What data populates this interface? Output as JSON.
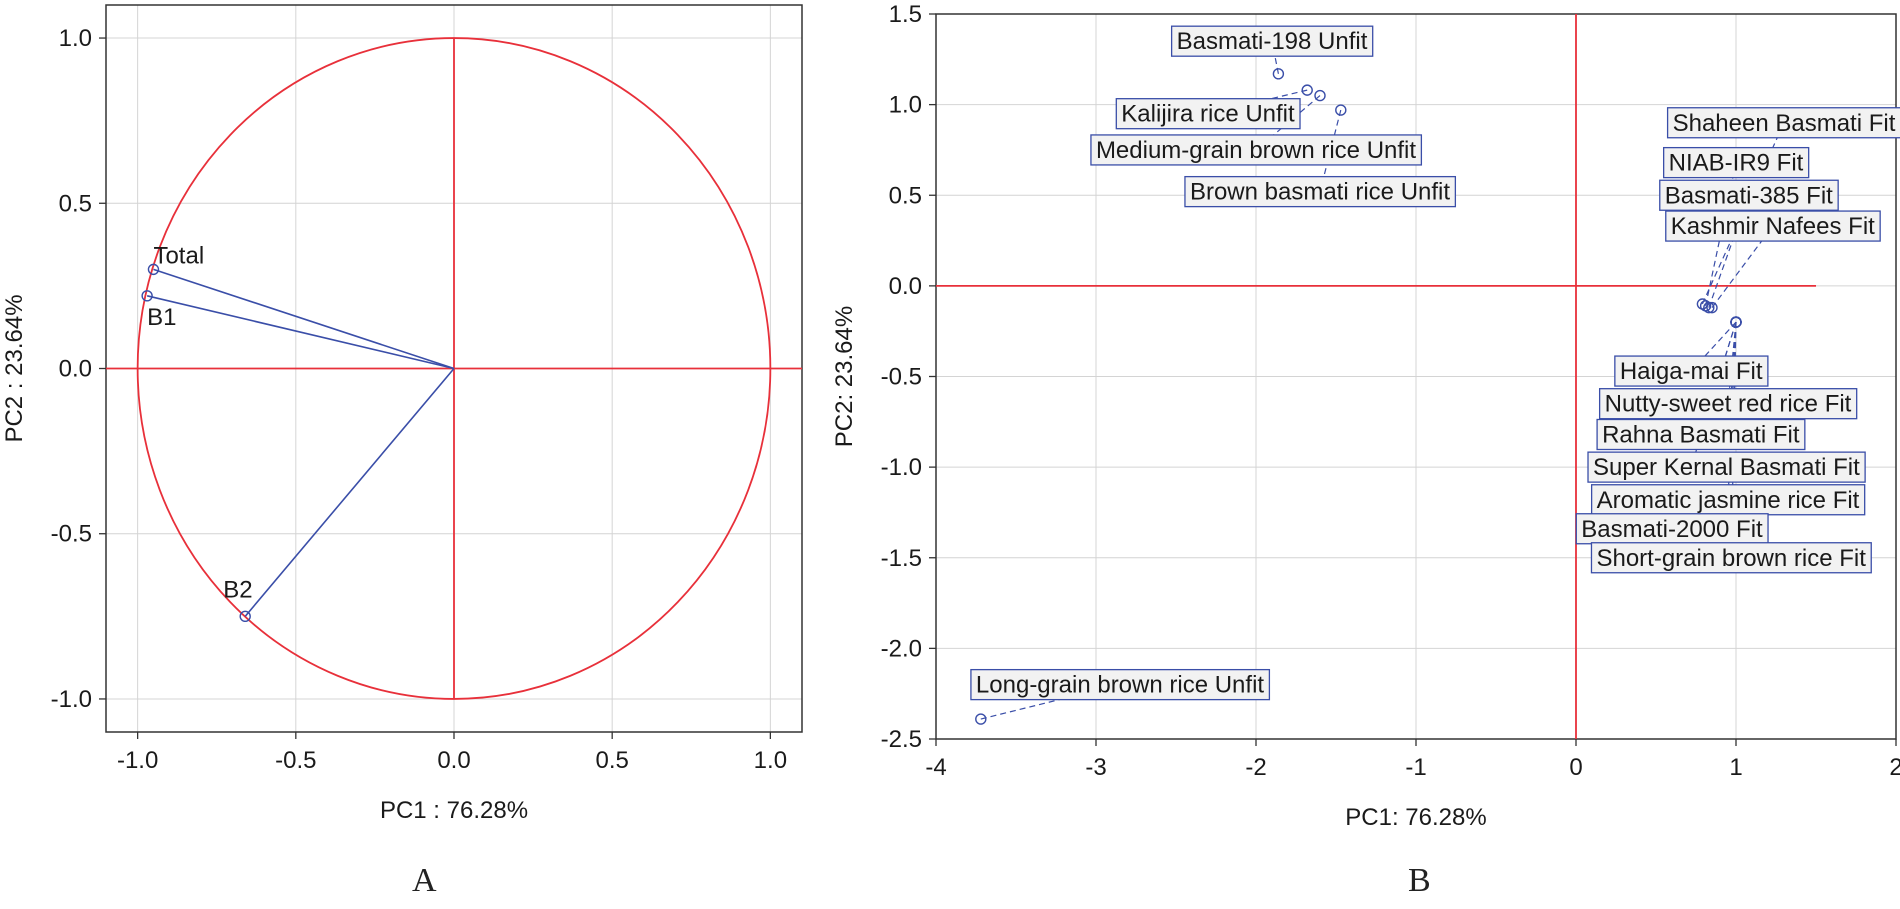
{
  "chart_data": [
    {
      "type": "scatter",
      "subtype": "loading-plot",
      "panel_label": "A",
      "xlabel": "PC1 : 76.28%",
      "ylabel": "PC2 : 23.64%",
      "xlim": [
        -1.1,
        1.1
      ],
      "ylim": [
        -1.1,
        1.1
      ],
      "xticks": [
        -1.0,
        -0.5,
        0.0,
        0.5,
        1.0
      ],
      "xtick_labels": [
        "-1.0",
        "-0.5",
        "0.0",
        "0.5",
        "1.0"
      ],
      "yticks": [
        -1.0,
        -0.5,
        0.0,
        0.5,
        1.0
      ],
      "ytick_labels": [
        "-1.0",
        "-0.5",
        "0.0",
        "0.5",
        "1.0"
      ],
      "grid": true,
      "unit_circle_radius": 1.0,
      "points": [
        {
          "label": "Total",
          "x": -0.95,
          "y": 0.3,
          "label_anchor": "above-right"
        },
        {
          "label": "B1",
          "x": -0.97,
          "y": 0.22,
          "label_anchor": "below"
        },
        {
          "label": "B2",
          "x": -0.66,
          "y": -0.75,
          "label_anchor": "above-left"
        }
      ],
      "colors": {
        "axis_lines": "#e8303a",
        "vectors": "#3a4ea8",
        "grid": "#d4d4d4"
      }
    },
    {
      "type": "scatter",
      "subtype": "score-plot",
      "panel_label": "B",
      "xlabel": "PC1: 76.28%",
      "ylabel": "PC2: 23.64%",
      "xlim": [
        -4,
        2
      ],
      "ylim": [
        -2.5,
        1.5
      ],
      "xticks": [
        -4,
        -3,
        -2,
        -1,
        0,
        1,
        2
      ],
      "xtick_labels": [
        "-4",
        "-3",
        "-2",
        "-1",
        "0",
        "1",
        "2"
      ],
      "yticks": [
        -2.5,
        -2.0,
        -1.5,
        -1.0,
        -0.5,
        0.0,
        0.5,
        1.0,
        1.5
      ],
      "ytick_labels": [
        "-2.5",
        "-2.0",
        "-1.5",
        "-1.0",
        "-0.5",
        "0.0",
        "0.5",
        "1.0",
        "1.5"
      ],
      "grid": true,
      "points": [
        {
          "label": "Basmati-198 Unfit",
          "x": -1.86,
          "y": 1.17,
          "label_pos": [
            -1.9,
            1.35
          ]
        },
        {
          "label": "Kalijira rice Unfit",
          "x": -1.68,
          "y": 1.08,
          "label_pos": [
            -2.3,
            0.95
          ]
        },
        {
          "label": "Medium-grain brown rice Unfit",
          "x": -1.6,
          "y": 1.05,
          "label_pos": [
            -2.0,
            0.75
          ]
        },
        {
          "label": "Brown basmati rice Unfit",
          "x": -1.47,
          "y": 0.97,
          "label_pos": [
            -1.6,
            0.52
          ]
        },
        {
          "label": "Shaheen Basmati Fit",
          "x": 0.79,
          "y": -0.1,
          "label_pos": [
            1.3,
            0.9
          ]
        },
        {
          "label": "NIAB-IR9 Fit",
          "x": 0.81,
          "y": -0.11,
          "label_pos": [
            1.0,
            0.68
          ]
        },
        {
          "label": "Basmati-385 Fit",
          "x": 0.83,
          "y": -0.12,
          "label_pos": [
            1.08,
            0.5
          ]
        },
        {
          "label": "Kashmir Nafees Fit",
          "x": 0.85,
          "y": -0.12,
          "label_pos": [
            1.23,
            0.33
          ]
        },
        {
          "label": "Haiga-mai Fit",
          "x": 1.0,
          "y": -0.2,
          "label_pos": [
            0.72,
            -0.47
          ]
        },
        {
          "label": "Nutty-sweet red rice Fit",
          "x": 1.0,
          "y": -0.2,
          "label_pos": [
            0.95,
            -0.65
          ]
        },
        {
          "label": "Rahna Basmati Fit",
          "x": 1.0,
          "y": -0.2,
          "label_pos": [
            0.78,
            -0.82
          ]
        },
        {
          "label": "Super Kernal  Basmati Fit",
          "x": 1.0,
          "y": -0.2,
          "label_pos": [
            0.94,
            -1.0
          ]
        },
        {
          "label": "Aromatic jasmine rice Fit",
          "x": 1.0,
          "y": -0.2,
          "label_pos": [
            0.95,
            -1.18
          ]
        },
        {
          "label": "Basmati-2000 Fit",
          "x": 1.0,
          "y": -0.2,
          "label_pos": [
            0.6,
            -1.34
          ]
        },
        {
          "label": "Short-grain brown rice Fit",
          "x": 1.0,
          "y": -0.2,
          "label_pos": [
            0.97,
            -1.5
          ]
        },
        {
          "label": "Long-grain brown rice Unfit",
          "x": -3.72,
          "y": -2.39,
          "label_pos": [
            -2.85,
            -2.2
          ]
        }
      ],
      "colors": {
        "axis_lines": "#e8303a",
        "points": "#3a4ea8",
        "label_fill": "#f2f2f2",
        "grid": "#d4d4d4"
      }
    }
  ]
}
